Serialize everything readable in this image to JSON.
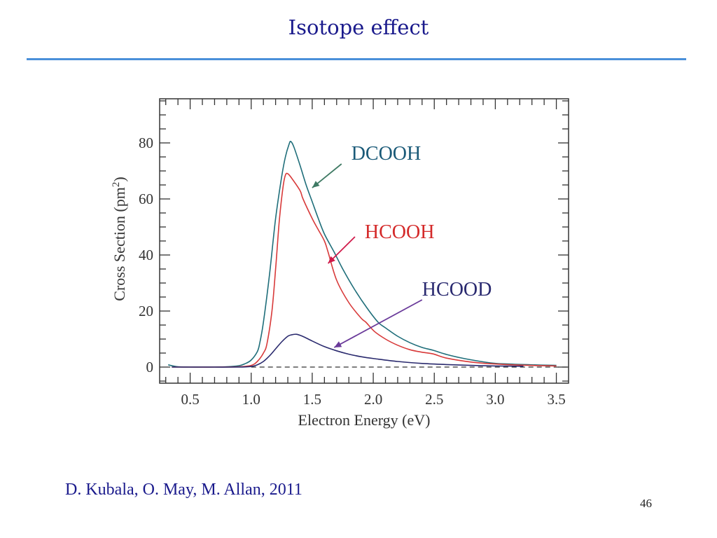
{
  "slide": {
    "title": "Isotope effect",
    "credit": "D. Kubala, O. May, M. Allan, 2011",
    "page_number": "46",
    "colors": {
      "title": "#1a1a8c",
      "rule": "#4a90d9"
    }
  },
  "chart_data": {
    "type": "line",
    "title": "",
    "xlabel": "Electron Energy (eV)",
    "ylabel_main": "Cross Section (pm",
    "ylabel_sup": "2",
    "ylabel_close": ")",
    "xlim": [
      0.25,
      3.6
    ],
    "ylim": [
      -5.75,
      95.75
    ],
    "x_ticks": [
      0.5,
      1.0,
      1.5,
      2.0,
      2.5,
      3.0,
      3.5
    ],
    "x_tick_labels": [
      "0.5",
      "1.0",
      "1.5",
      "2.0",
      "2.5",
      "3.0",
      "3.5"
    ],
    "y_ticks": [
      0,
      20,
      40,
      60,
      80
    ],
    "y_tick_labels": [
      "0",
      "20",
      "40",
      "60",
      "80"
    ],
    "x_minor_step": 0.1,
    "y_minor_step": 5,
    "grid": false,
    "baseline": 0,
    "series": [
      {
        "name": "DCOOH",
        "color": "#1f6e7a",
        "label_color": "#1a5a78",
        "arrow_color": "#3f7a64",
        "x": [
          0.32,
          0.4,
          0.5,
          0.6,
          0.7,
          0.8,
          0.9,
          0.95,
          1.0,
          1.05,
          1.07,
          1.1,
          1.15,
          1.2,
          1.25,
          1.28,
          1.31,
          1.325,
          1.35,
          1.4,
          1.45,
          1.5,
          1.55,
          1.6,
          1.68,
          1.75,
          1.85,
          1.95,
          2.04,
          2.1,
          2.2,
          2.3,
          2.4,
          2.49,
          2.6,
          2.75,
          2.96,
          3.1,
          3.3,
          3.5
        ],
        "y": [
          0.8,
          0.1,
          0,
          0,
          0,
          0.1,
          0.5,
          1.2,
          2.5,
          5.5,
          8.5,
          16,
          33,
          53,
          68,
          75,
          79.5,
          80.5,
          78.5,
          72,
          65,
          59,
          53,
          47.5,
          41,
          35,
          27.5,
          21,
          16,
          14,
          11,
          8.7,
          7,
          6,
          4.5,
          3,
          1.5,
          1.1,
          0.8,
          0.6
        ]
      },
      {
        "name": "HCOOH",
        "color": "#d83a3a",
        "label_color": "#d42a2a",
        "arrow_color": "#d01a4a",
        "x": [
          0.35,
          0.5,
          0.7,
          0.9,
          1.0,
          1.05,
          1.1,
          1.13,
          1.17,
          1.2,
          1.23,
          1.26,
          1.28,
          1.3,
          1.33,
          1.4,
          1.425,
          1.5,
          1.55,
          1.6,
          1.63,
          1.7,
          1.8,
          1.9,
          1.94,
          2.01,
          2.1,
          2.2,
          2.3,
          2.4,
          2.49,
          2.6,
          2.8,
          2.96,
          3.2,
          3.5
        ],
        "y": [
          0,
          0,
          0,
          0.1,
          0.6,
          2,
          5,
          8.5,
          20,
          35,
          52,
          64,
          68.5,
          69,
          67.5,
          63,
          60,
          53,
          49,
          45,
          41,
          31,
          23,
          17.5,
          16,
          12.7,
          10,
          7.8,
          6.2,
          5.3,
          4.7,
          3.2,
          1.8,
          1.2,
          0.7,
          0.4
        ]
      },
      {
        "name": "HCOOD",
        "color": "#2a2a6e",
        "label_color": "#2a2a70",
        "arrow_color": "#6a3a9a",
        "x": [
          0.35,
          0.5,
          0.7,
          0.9,
          1.0,
          1.05,
          1.1,
          1.15,
          1.2,
          1.25,
          1.3,
          1.33,
          1.37,
          1.42,
          1.5,
          1.6,
          1.7,
          1.8,
          1.9,
          2.01,
          2.2,
          2.4,
          2.6,
          2.8,
          3.0,
          3.23
        ],
        "y": [
          0,
          0,
          0,
          0,
          0.2,
          0.8,
          2,
          4,
          6.5,
          9,
          11,
          11.5,
          11.7,
          11,
          9.3,
          7.3,
          5.8,
          4.6,
          3.7,
          3,
          2,
          1.3,
          0.9,
          0.6,
          0.4,
          0.3
        ]
      }
    ],
    "annotations": [
      {
        "text": "DCOOH",
        "series": "DCOOH",
        "label_at": [
          1.82,
          74
        ],
        "arrow_from": [
          1.74,
          72.5
        ],
        "arrow_to": [
          1.5,
          64
        ]
      },
      {
        "text": "HCOOH",
        "series": "HCOOH",
        "label_at": [
          1.93,
          46
        ],
        "arrow_from": [
          1.85,
          46.5
        ],
        "arrow_to": [
          1.63,
          37
        ]
      },
      {
        "text": "HCOOD",
        "series": "HCOOD",
        "label_at": [
          2.4,
          25.5
        ],
        "arrow_from": [
          2.4,
          24
        ],
        "arrow_to": [
          1.68,
          7
        ]
      }
    ]
  }
}
